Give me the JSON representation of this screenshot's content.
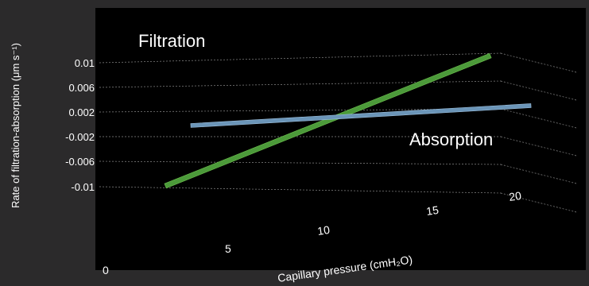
{
  "chart_data": {
    "type": "line",
    "render": "3d-perspective",
    "ylabel": "Rate of filtration-absorption (μm s⁻¹)",
    "xlabel": "Capillary pressure (cmH₂O)",
    "y_ticks": [
      "0.01",
      "0.006",
      "0.002",
      "-0.002",
      "-0.006",
      "-0.01"
    ],
    "x_ticks": [
      "0",
      "5",
      "10",
      "15",
      "20"
    ],
    "annotations": {
      "top": "Filtration",
      "bottom": "Absorption"
    },
    "series": [
      {
        "color": "#4c9a3a",
        "x": [
          2.5,
          19
        ],
        "y": [
          -0.01,
          0.011
        ]
      },
      {
        "color": "#6b95b8",
        "x": [
          2.5,
          20
        ],
        "y": [
          0.0005,
          0.0025
        ]
      }
    ],
    "background": "#000000",
    "page_background": "#2b2a2b",
    "grid": true
  }
}
